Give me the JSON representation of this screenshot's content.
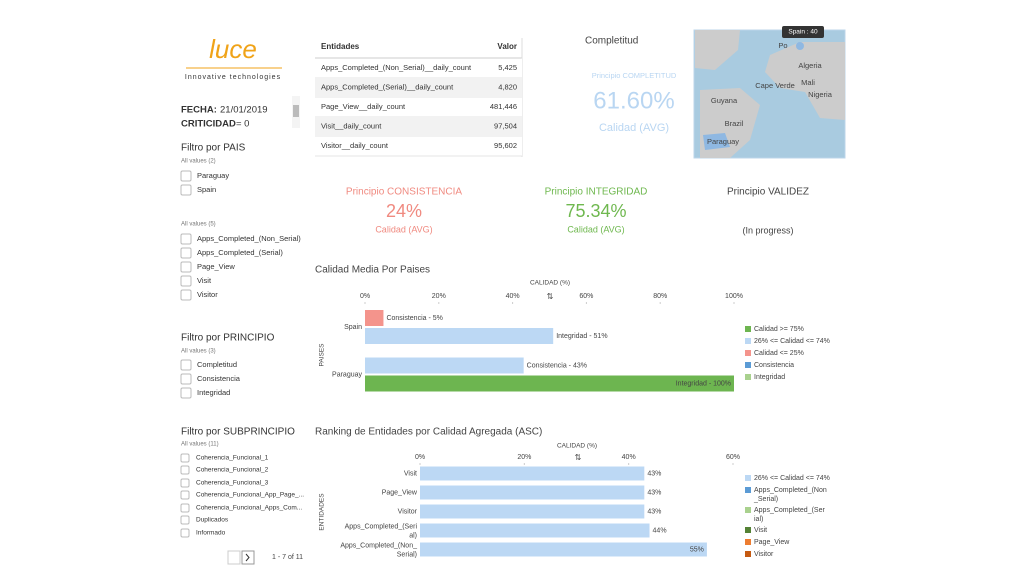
{
  "logo": {
    "name": "luce",
    "tagline": "Innovative technologies"
  },
  "header": {
    "fecha_label": "FECHA:",
    "fecha": "21/01/2019",
    "criticidad_label": "CRITICIDAD",
    "criticidad": "= 0"
  },
  "filters": [
    {
      "title": "Filtro por PAIS",
      "all": "All values (2)",
      "items": [
        "Paraguay",
        "Spain"
      ]
    },
    {
      "all": "All values (5)",
      "items": [
        "Apps_Completed_(Non_Serial)",
        "Apps_Completed_(Serial)",
        "Page_View",
        "Visit",
        "Visitor"
      ]
    },
    {
      "title": "Filtro por PRINCIPIO",
      "all": "All values (3)",
      "items": [
        "Completitud",
        "Consistencia",
        "Integridad"
      ]
    },
    {
      "title": "Filtro por SUBPRINCIPIO",
      "all": "All values (11)",
      "items": [
        "Coherencia_Funcional_1",
        "Coherencia_Funcional_2",
        "Coherencia_Funcional_3",
        "Coherencia_Funcional_App_Page_...",
        "Coherencia_Funcional_Apps_Com...",
        "Duplicados",
        "Informado"
      ]
    }
  ],
  "pager": "1 - 7 of 11",
  "table": {
    "columns": [
      "Entidades",
      "Valor"
    ],
    "rows": [
      [
        "Apps_Completed_(Non_Serial)__daily_count",
        "5,425"
      ],
      [
        "Apps_Completed_(Serial)__daily_count",
        "4,820"
      ],
      [
        "Page_View__daily_count",
        "481,446"
      ],
      [
        "Visit__daily_count",
        "97,504"
      ],
      [
        "Visitor__daily_count",
        "95,602"
      ]
    ]
  },
  "map": {
    "title": "Completitud",
    "tooltip": "Spain : 40",
    "labels": [
      "Po",
      "Algeria",
      "Mali",
      "Cape Verde",
      "Nigeria",
      "Guyana",
      "Brazil",
      "Paraguay"
    ]
  },
  "kpis": [
    {
      "title": "Principio COMPLETITUD",
      "value": "61.60%",
      "subtitle": "Calidad (AVG)",
      "color": "#b9d6f2"
    },
    {
      "title": "Principio CONSISTENCIA",
      "value": "24%",
      "subtitle": "Calidad (AVG)",
      "color": "#f08a80"
    },
    {
      "title": "Principio INTEGRIDAD",
      "value": "75.34%",
      "subtitle": "Calidad (AVG)",
      "color": "#6fb84f"
    },
    {
      "title": "Principio VALIDEZ",
      "subtitle": "(In progress)",
      "color": "#444444"
    }
  ],
  "chart_data": [
    {
      "type": "bar",
      "orientation": "horizontal",
      "title": "Calidad Media Por Paises",
      "xlabel": "CALIDAD (%)",
      "ylabel": "PAISES",
      "categories": [
        "Spain",
        "Paraguay"
      ],
      "series": [
        {
          "name": "Consistencia",
          "values": [
            5,
            43
          ],
          "colors": [
            "#f4948c",
            "#bcd8f4"
          ],
          "value_labels": [
            "Consistencia  - 5%",
            "Consistencia  - 43%"
          ]
        },
        {
          "name": "Integridad",
          "values": [
            51,
            100
          ],
          "colors": [
            "#bcd8f4",
            "#6db550"
          ],
          "value_labels": [
            "Integridad  - 51%",
            "Integridad  - 100%"
          ]
        }
      ],
      "xlim": [
        0,
        100
      ],
      "xticks": [
        {
          "value": 0,
          "label": "0%"
        },
        {
          "value": 20,
          "label": "20%"
        },
        {
          "value": 40,
          "label": "40%"
        },
        {
          "value": 60,
          "label": "60%"
        },
        {
          "value": 80,
          "label": "80%"
        },
        {
          "value": 100,
          "label": "100%"
        }
      ],
      "legend": [
        {
          "name": "Calidad >= 75%",
          "color": "#6db550"
        },
        {
          "name": "26% <= Calidad <= 74%",
          "color": "#bcd8f4"
        },
        {
          "name": "Calidad <= 25%",
          "color": "#f4948c"
        },
        {
          "name": "Consistencia",
          "color": "#5b9bd5"
        },
        {
          "name": "Integridad",
          "color": "#a9d18e"
        }
      ]
    },
    {
      "type": "bar",
      "orientation": "horizontal",
      "title": "Ranking de Entidades por Calidad Agregada (ASC)",
      "xlabel": "CALIDAD (%)",
      "ylabel": "ENTIDADES",
      "categories": [
        "Visit",
        "Page_View",
        "Visitor",
        "Apps_Completed_(Serial)",
        "Apps_Completed_(Non_Serial)"
      ],
      "series": [
        {
          "name": "26% <= Calidad <= 74%",
          "values": [
            43,
            43,
            43,
            44,
            55
          ],
          "colors": [
            "#bcd8f4",
            "#bcd8f4",
            "#bcd8f4",
            "#bcd8f4",
            "#bcd8f4"
          ],
          "value_labels": [
            "43%",
            "43%",
            "43%",
            "44%",
            "55%"
          ]
        }
      ],
      "xlim": [
        0,
        60
      ],
      "xticks": [
        {
          "value": 0,
          "label": "0%"
        },
        {
          "value": 20,
          "label": "20%"
        },
        {
          "value": 40,
          "label": "40%"
        },
        {
          "value": 60,
          "label": "60%"
        }
      ],
      "legend": [
        {
          "name": "26% <= Calidad <= 74%",
          "color": "#bcd8f4"
        },
        {
          "name": "Apps_Completed_(Non_Serial)",
          "color": "#5b9bd5"
        },
        {
          "name": "Apps_Completed_(Serial)",
          "color": "#a9d18e"
        },
        {
          "name": "Visit",
          "color": "#548235"
        },
        {
          "name": "Page_View",
          "color": "#ed7d31"
        },
        {
          "name": "Visitor",
          "color": "#c55a11"
        }
      ]
    }
  ]
}
